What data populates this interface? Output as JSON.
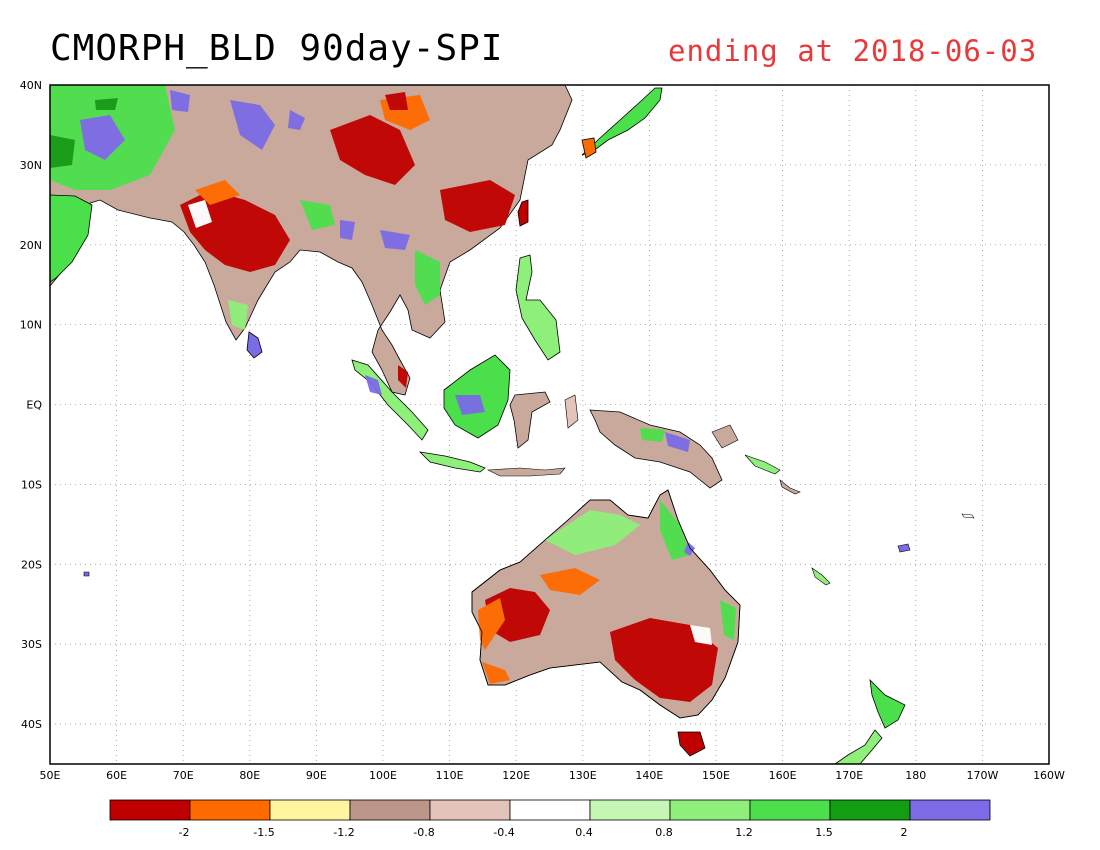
{
  "title": "CMORPH_BLD 90day-SPI",
  "subtitle": "ending at 2018-06-03",
  "colors": {
    "title": "#000000",
    "subtitle": "#e8383a",
    "land_outline": "#000000",
    "ocean": "#ffffff"
  },
  "map": {
    "lon_range": [
      50,
      200
    ],
    "lat_range": [
      -45,
      40
    ],
    "lon_ticks": [
      "50E",
      "60E",
      "70E",
      "80E",
      "90E",
      "100E",
      "110E",
      "120E",
      "130E",
      "140E",
      "150E",
      "160E",
      "170E",
      "180",
      "170W",
      "160W"
    ],
    "lat_ticks": [
      "40N",
      "30N",
      "20N",
      "10N",
      "EQ",
      "10S",
      "20S",
      "30S",
      "40S"
    ],
    "lat_tick_values": [
      40,
      30,
      20,
      10,
      0,
      -10,
      -20,
      -30,
      -40
    ],
    "grid": true
  },
  "legend": {
    "colors": [
      "#c00000",
      "#ff6a00",
      "#fff5a0",
      "#bd968a",
      "#e3c3ba",
      "#ffffff",
      "#c4f7b6",
      "#8ef07a",
      "#4cdf4c",
      "#129d12",
      "#7b6be6"
    ],
    "labels": [
      "-2",
      "-1.5",
      "-1.2",
      "-0.8",
      "-0.4",
      "0.4",
      "0.8",
      "1.2",
      "1.5",
      "2"
    ]
  }
}
